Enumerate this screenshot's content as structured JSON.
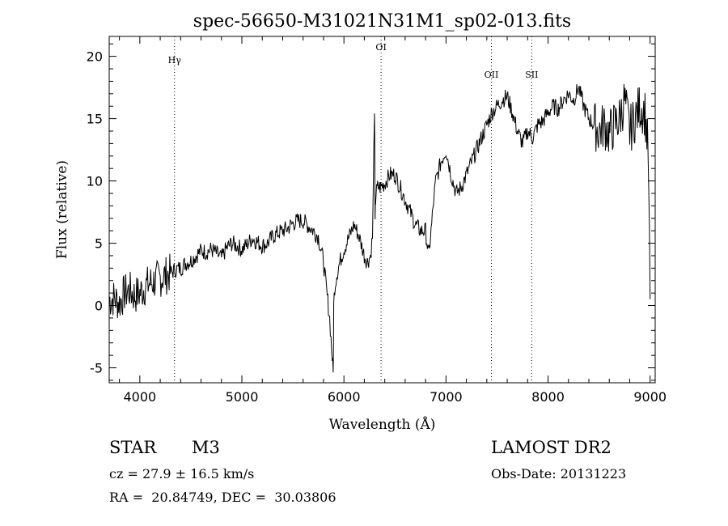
{
  "chart_data": {
    "type": "line",
    "title": "spec-56650-M31021N31M1_sp02-013.fits",
    "xlabel": "Wavelength (Å)",
    "ylabel": "Flux (relative)",
    "xlim": [
      3700,
      9050
    ],
    "ylim": [
      -6.2,
      21.6
    ],
    "xticks": [
      4000,
      5000,
      6000,
      7000,
      8000,
      9000
    ],
    "yticks": [
      -5,
      0,
      5,
      10,
      15,
      20
    ],
    "grid": false,
    "legend": "none",
    "series": [
      {
        "color": "#000000",
        "x": [
          3700,
          3750,
          3800,
          3850,
          3900,
          3950,
          4000,
          4050,
          4100,
          4150,
          4200,
          4250,
          4300,
          4350,
          4400,
          4450,
          4500,
          4550,
          4600,
          4650,
          4700,
          4750,
          4800,
          4850,
          4900,
          4950,
          5000,
          5050,
          5100,
          5150,
          5200,
          5250,
          5300,
          5350,
          5400,
          5450,
          5500,
          5550,
          5600,
          5650,
          5700,
          5750,
          5800,
          5830,
          5860,
          5880,
          5895,
          5900,
          5910,
          5930,
          5960,
          6000,
          6050,
          6100,
          6150,
          6200,
          6230,
          6260,
          6280,
          6300,
          6305,
          6310,
          6315,
          6330,
          6360,
          6400,
          6450,
          6500,
          6550,
          6600,
          6650,
          6700,
          6750,
          6800,
          6830,
          6860,
          6880,
          6900,
          6950,
          7000,
          7050,
          7100,
          7150,
          7200,
          7250,
          7300,
          7350,
          7400,
          7450,
          7500,
          7550,
          7600,
          7650,
          7700,
          7750,
          7800,
          7850,
          7900,
          7950,
          8000,
          8050,
          8100,
          8150,
          8200,
          8250,
          8300,
          8350,
          8400,
          8450,
          8500,
          8550,
          8600,
          8650,
          8700,
          8750,
          8800,
          8850,
          8900,
          8950,
          8980,
          9000
        ],
        "y": [
          0.5,
          0.6,
          0.2,
          1.0,
          1.2,
          0.8,
          1.0,
          1.5,
          1.8,
          2.0,
          2.2,
          2.4,
          2.6,
          2.9,
          3.0,
          3.4,
          3.6,
          4.0,
          4.4,
          4.3,
          4.5,
          4.2,
          3.8,
          4.6,
          5.0,
          4.8,
          4.5,
          4.9,
          5.4,
          5.1,
          4.8,
          5.0,
          5.5,
          5.8,
          6.0,
          6.2,
          6.6,
          6.8,
          6.8,
          6.4,
          6.0,
          5.5,
          3.5,
          1.2,
          -1.0,
          -3.5,
          -5.5,
          0.0,
          1.5,
          2.5,
          3.5,
          4.5,
          5.5,
          6.5,
          5.5,
          4.0,
          3.5,
          4.0,
          5.5,
          16.0,
          6.5,
          8.5,
          9.0,
          9.5,
          9.5,
          9.8,
          10.5,
          10.5,
          9.5,
          8.5,
          7.5,
          6.5,
          6.0,
          6.0,
          4.0,
          6.5,
          8.5,
          10.0,
          11.5,
          12.5,
          10.5,
          9.0,
          9.5,
          10.5,
          11.5,
          12.5,
          13.5,
          14.5,
          15.5,
          16.0,
          16.5,
          16.8,
          15.5,
          14.0,
          13.0,
          14.0,
          13.5,
          14.5,
          14.8,
          15.5,
          16.0,
          15.8,
          16.5,
          17.0,
          16.5,
          17.5,
          16.0,
          15.0,
          14.5,
          14.0,
          14.5,
          13.8,
          14.5,
          15.0,
          16.5,
          14.0,
          15.0,
          16.0,
          15.5,
          12.5,
          0.5
        ]
      }
    ],
    "lines": [
      {
        "label": "Hγ",
        "x": 4340
      },
      {
        "label": "OI",
        "x": 6364
      },
      {
        "label": "OII",
        "x": 7445
      },
      {
        "label": "SII",
        "x": 7840
      }
    ]
  },
  "info": {
    "class": "STAR",
    "subclass": "M3",
    "survey": "LAMOST DR2",
    "cz": "cz = 27.9 ± 16.5 km/s",
    "obsdate": "Obs-Date: 20131223",
    "radec": "RA =  20.84749, DEC =  30.03806"
  }
}
